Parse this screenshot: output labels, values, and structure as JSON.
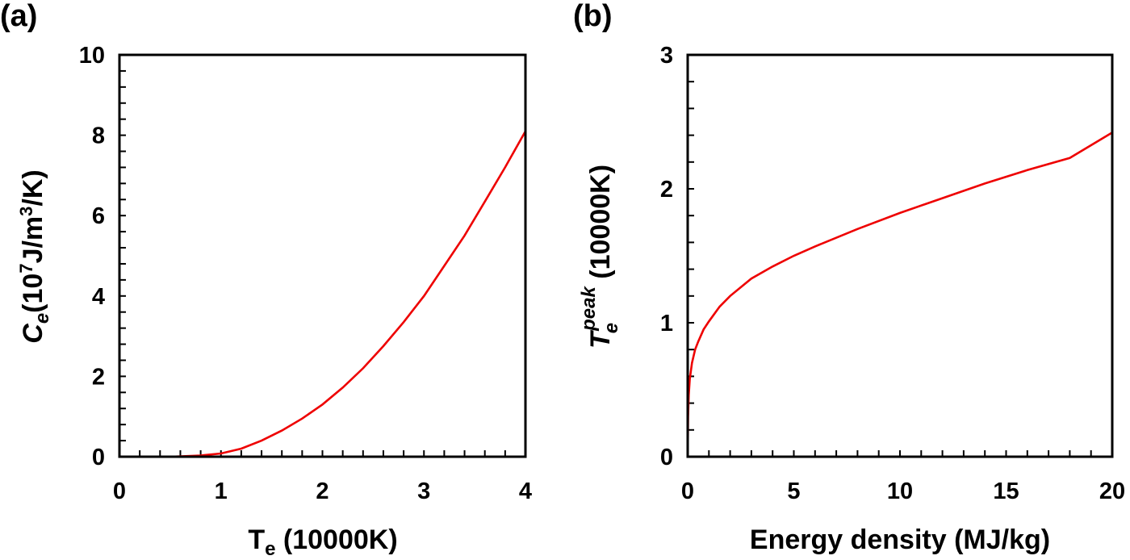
{
  "chart_data": [
    {
      "panel_label": "(a)",
      "type": "line",
      "xlabel_main": "T",
      "xlabel_sub": "e",
      "xlabel_rest": " (10000K)",
      "ylabel_main": "C",
      "ylabel_sub": "e",
      "ylabel_open": "(10",
      "ylabel_exp1": "7",
      "ylabel_mid": "J/m",
      "ylabel_exp2": "3",
      "ylabel_close": "/K)",
      "xlim": [
        0,
        4
      ],
      "ylim": [
        0,
        10
      ],
      "x_ticks": [
        0,
        1,
        2,
        3,
        4
      ],
      "y_ticks": [
        0,
        2,
        4,
        6,
        8,
        10
      ],
      "x_minor_step": 0.2,
      "y_minor_step": 0.4,
      "series": [
        {
          "color": "#ee0000",
          "x": [
            0.1,
            0.5,
            0.8,
            1.0,
            1.2,
            1.4,
            1.6,
            1.8,
            2.0,
            2.2,
            2.4,
            2.6,
            2.8,
            3.0,
            3.2,
            3.4,
            3.6,
            3.8,
            4.0
          ],
          "y": [
            0.0,
            0.0,
            0.03,
            0.08,
            0.2,
            0.4,
            0.65,
            0.95,
            1.3,
            1.72,
            2.2,
            2.75,
            3.35,
            4.0,
            4.75,
            5.5,
            6.35,
            7.2,
            8.1
          ]
        }
      ]
    },
    {
      "panel_label": "(b)",
      "type": "line",
      "xlabel": "Energy density (MJ/kg)",
      "ylabel_main": "T",
      "ylabel_sub": "e",
      "ylabel_sup": "peak",
      "ylabel_rest": " (10000K)",
      "xlim": [
        0,
        20
      ],
      "ylim": [
        0,
        3
      ],
      "x_ticks": [
        0,
        5,
        10,
        15,
        20
      ],
      "y_ticks": [
        0,
        1,
        2,
        3
      ],
      "x_minor_step": 1,
      "y_minor_step": 0.2,
      "series": [
        {
          "color": "#ee0000",
          "x": [
            0,
            0.02,
            0.05,
            0.1,
            0.2,
            0.35,
            0.5,
            0.75,
            1.0,
            1.5,
            2.0,
            3.0,
            4.0,
            5.0,
            6.0,
            8.0,
            10.0,
            12.0,
            14.0,
            16.0,
            18.0,
            20.0
          ],
          "y": [
            0,
            0.3,
            0.46,
            0.58,
            0.7,
            0.8,
            0.86,
            0.95,
            1.01,
            1.12,
            1.2,
            1.33,
            1.42,
            1.5,
            1.57,
            1.7,
            1.82,
            1.93,
            2.04,
            2.14,
            2.23,
            2.42
          ]
        }
      ]
    }
  ]
}
